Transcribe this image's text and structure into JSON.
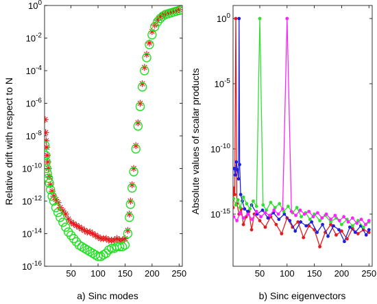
{
  "chart_data": [
    {
      "type": "scatter",
      "xlabel": "a) Sinc modes",
      "ylabel": "Relative drift with respect to N",
      "xlim": [
        1,
        256
      ],
      "ylim_exp": [
        -16,
        0
      ],
      "yscale": "log",
      "grid": false,
      "legend": "none",
      "x_ticks": [
        "50",
        "100",
        "150",
        "200",
        "250"
      ],
      "y_ticks": [
        {
          "base": "10",
          "exp": "0"
        },
        {
          "base": "10",
          "exp": "-2"
        },
        {
          "base": "10",
          "exp": "-4"
        },
        {
          "base": "10",
          "exp": "-6"
        },
        {
          "base": "10",
          "exp": "-8"
        },
        {
          "base": "10",
          "exp": "-10"
        },
        {
          "base": "10",
          "exp": "-12"
        },
        {
          "base": "10",
          "exp": "-14"
        },
        {
          "base": "10",
          "exp": "-16"
        }
      ],
      "series": [
        {
          "color": "#e41a1c",
          "marker": "asterisk",
          "points": [
            [
              2,
              -7.0
            ],
            [
              3,
              -7.8
            ],
            [
              4,
              -8.3
            ],
            [
              5,
              -8.7
            ],
            [
              6,
              -9.2
            ],
            [
              7,
              -9.6
            ],
            [
              8,
              -10.0
            ],
            [
              10,
              -10.5
            ],
            [
              12,
              -11.0
            ],
            [
              15,
              -11.4
            ],
            [
              18,
              -11.7
            ],
            [
              22,
              -11.9
            ],
            [
              26,
              -12.1
            ],
            [
              30,
              -12.4
            ],
            [
              35,
              -12.6
            ],
            [
              40,
              -12.8
            ],
            [
              45,
              -13.1
            ],
            [
              50,
              -13.3
            ],
            [
              55,
              -13.4
            ],
            [
              60,
              -13.5
            ],
            [
              65,
              -13.6
            ],
            [
              70,
              -13.7
            ],
            [
              75,
              -13.8
            ],
            [
              80,
              -13.9
            ],
            [
              85,
              -13.9
            ],
            [
              90,
              -14.0
            ],
            [
              95,
              -14.1
            ],
            [
              100,
              -14.2
            ],
            [
              105,
              -14.3
            ],
            [
              110,
              -14.3
            ],
            [
              115,
              -14.3
            ],
            [
              120,
              -14.4
            ],
            [
              125,
              -14.4
            ],
            [
              130,
              -14.4
            ],
            [
              135,
              -14.3
            ],
            [
              140,
              -14.4
            ],
            [
              145,
              -14.4
            ],
            [
              150,
              -14.3
            ],
            [
              155,
              -13.8
            ],
            [
              158,
              -12.8
            ],
            [
              160,
              -12.0
            ],
            [
              163,
              -11.0
            ],
            [
              166,
              -10.0
            ],
            [
              170,
              -8.6
            ],
            [
              174,
              -7.2
            ],
            [
              178,
              -6.0
            ],
            [
              182,
              -4.8
            ],
            [
              186,
              -3.8
            ],
            [
              190,
              -3.0
            ],
            [
              195,
              -2.3
            ],
            [
              200,
              -1.6
            ],
            [
              205,
              -1.2
            ],
            [
              210,
              -0.9
            ],
            [
              215,
              -0.7
            ],
            [
              220,
              -0.6
            ],
            [
              225,
              -0.5
            ],
            [
              230,
              -0.45
            ],
            [
              235,
              -0.4
            ],
            [
              240,
              -0.35
            ],
            [
              245,
              -0.3
            ],
            [
              250,
              -0.25
            ]
          ]
        },
        {
          "color": "#22e022",
          "marker": "circle",
          "points": [
            [
              2,
              -8.6
            ],
            [
              3,
              -9.2
            ],
            [
              4,
              -9.6
            ],
            [
              5,
              -10.0
            ],
            [
              6,
              -10.3
            ],
            [
              8,
              -10.6
            ],
            [
              10,
              -10.9
            ],
            [
              12,
              -11.3
            ],
            [
              15,
              -11.7
            ],
            [
              18,
              -12.0
            ],
            [
              22,
              -12.4
            ],
            [
              26,
              -12.7
            ],
            [
              30,
              -13.0
            ],
            [
              35,
              -13.3
            ],
            [
              40,
              -13.6
            ],
            [
              45,
              -13.9
            ],
            [
              50,
              -14.1
            ],
            [
              55,
              -14.3
            ],
            [
              60,
              -14.5
            ],
            [
              65,
              -14.7
            ],
            [
              70,
              -14.8
            ],
            [
              75,
              -14.9
            ],
            [
              80,
              -15.0
            ],
            [
              85,
              -15.1
            ],
            [
              90,
              -15.2
            ],
            [
              95,
              -15.3
            ],
            [
              100,
              -15.4
            ],
            [
              105,
              -15.4
            ],
            [
              110,
              -15.3
            ],
            [
              115,
              -15.2
            ],
            [
              120,
              -15.0
            ],
            [
              125,
              -14.9
            ],
            [
              130,
              -14.9
            ],
            [
              135,
              -14.8
            ],
            [
              140,
              -14.8
            ],
            [
              145,
              -14.8
            ],
            [
              150,
              -14.7
            ],
            [
              155,
              -14.0
            ],
            [
              158,
              -13.0
            ],
            [
              160,
              -12.2
            ],
            [
              163,
              -11.2
            ],
            [
              166,
              -10.2
            ],
            [
              170,
              -8.8
            ],
            [
              174,
              -7.4
            ],
            [
              178,
              -6.2
            ],
            [
              182,
              -5.0
            ],
            [
              186,
              -4.0
            ],
            [
              190,
              -3.2
            ],
            [
              195,
              -2.4
            ],
            [
              200,
              -1.8
            ],
            [
              205,
              -1.3
            ],
            [
              210,
              -1.0
            ],
            [
              215,
              -0.8
            ],
            [
              220,
              -0.65
            ],
            [
              225,
              -0.55
            ],
            [
              230,
              -0.5
            ],
            [
              235,
              -0.45
            ],
            [
              240,
              -0.4
            ],
            [
              245,
              -0.35
            ],
            [
              250,
              -0.3
            ]
          ]
        }
      ]
    },
    {
      "type": "line",
      "xlabel": "b) Sinc eigenvectors",
      "ylabel": "Absolute values of scalar products",
      "xlim": [
        1,
        256
      ],
      "ylim_exp": [
        -19,
        1
      ],
      "yscale": "log",
      "grid": false,
      "legend": "none",
      "x_ticks": [
        "50",
        "100",
        "150",
        "200",
        "250"
      ],
      "y_ticks": [
        {
          "base": "10",
          "exp": "0"
        },
        {
          "base": "10",
          "exp": "-5"
        },
        {
          "base": "10",
          "exp": "-10"
        },
        {
          "base": "10",
          "exp": "-15"
        }
      ],
      "series": [
        {
          "color": "#e41a1c",
          "points": [
            [
              1,
              -14.5
            ],
            [
              2,
              -13.0
            ],
            [
              4,
              -13.5
            ],
            [
              6,
              0
            ],
            [
              8,
              -14.2
            ],
            [
              12,
              -15.0
            ],
            [
              16,
              -14.6
            ],
            [
              20,
              -15.8
            ],
            [
              25,
              -15.2
            ],
            [
              30,
              -14.8
            ],
            [
              35,
              -16.2
            ],
            [
              40,
              -15.0
            ],
            [
              50,
              -15.5
            ],
            [
              60,
              -16.0
            ],
            [
              70,
              -15.2
            ],
            [
              80,
              -15.8
            ],
            [
              90,
              -16.5
            ],
            [
              100,
              -15.3
            ],
            [
              110,
              -16.0
            ],
            [
              120,
              -15.6
            ],
            [
              130,
              -16.8
            ],
            [
              140,
              -15.9
            ],
            [
              150,
              -16.2
            ],
            [
              160,
              -17.5
            ],
            [
              170,
              -16.4
            ],
            [
              180,
              -15.8
            ],
            [
              190,
              -16.6
            ],
            [
              200,
              -16.3
            ],
            [
              210,
              -16.9
            ],
            [
              220,
              -16.1
            ],
            [
              230,
              -16.5
            ],
            [
              240,
              -16.2
            ],
            [
              250,
              -16.4
            ]
          ]
        },
        {
          "color": "#1f1fe0",
          "points": [
            [
              3,
              -11.5
            ],
            [
              5,
              -12.0
            ],
            [
              7,
              -11.0
            ],
            [
              9,
              -11.6
            ],
            [
              11,
              -12.3
            ],
            [
              12,
              0
            ],
            [
              13,
              -11.2
            ],
            [
              15,
              -13.5
            ],
            [
              18,
              -14.0
            ],
            [
              22,
              -14.6
            ],
            [
              28,
              -14.8
            ],
            [
              35,
              -14.3
            ],
            [
              45,
              -15.0
            ],
            [
              55,
              -14.7
            ],
            [
              65,
              -15.3
            ],
            [
              75,
              -14.9
            ],
            [
              85,
              -15.4
            ],
            [
              95,
              -15.0
            ],
            [
              105,
              -15.5
            ],
            [
              115,
              -16.3
            ],
            [
              125,
              -15.6
            ],
            [
              135,
              -15.9
            ],
            [
              145,
              -15.6
            ],
            [
              155,
              -16.4
            ],
            [
              165,
              -15.8
            ],
            [
              175,
              -16.7
            ],
            [
              185,
              -15.9
            ],
            [
              195,
              -16.2
            ],
            [
              205,
              -17.1
            ],
            [
              215,
              -16.0
            ],
            [
              225,
              -16.4
            ],
            [
              235,
              -15.9
            ],
            [
              245,
              -16.6
            ],
            [
              250,
              -16.2
            ]
          ]
        },
        {
          "color": "#33dd33",
          "points": [
            [
              2,
              -13.8
            ],
            [
              6,
              -14.3
            ],
            [
              10,
              -13.9
            ],
            [
              14,
              -14.5
            ],
            [
              20,
              -13.7
            ],
            [
              26,
              -14.2
            ],
            [
              32,
              -14.6
            ],
            [
              38,
              -14.0
            ],
            [
              44,
              -14.4
            ],
            [
              50,
              0
            ],
            [
              56,
              -14.3
            ],
            [
              62,
              -14.7
            ],
            [
              70,
              -14.1
            ],
            [
              78,
              -14.5
            ],
            [
              86,
              -14.2
            ],
            [
              94,
              -14.8
            ],
            [
              102,
              -14.4
            ],
            [
              110,
              -14.9
            ],
            [
              118,
              -14.5
            ],
            [
              126,
              -15.2
            ],
            [
              134,
              -14.9
            ],
            [
              142,
              -15.4
            ],
            [
              150,
              -15.0
            ],
            [
              160,
              -15.5
            ],
            [
              170,
              -15.1
            ],
            [
              180,
              -15.6
            ],
            [
              190,
              -15.3
            ],
            [
              200,
              -15.8
            ],
            [
              210,
              -15.4
            ],
            [
              220,
              -15.9
            ],
            [
              230,
              -15.5
            ],
            [
              240,
              -16.0
            ],
            [
              250,
              -15.6
            ]
          ]
        },
        {
          "color": "#ff22ff",
          "points": [
            [
              2,
              -15.2
            ],
            [
              8,
              -15.5
            ],
            [
              14,
              -14.9
            ],
            [
              20,
              -15.3
            ],
            [
              28,
              -15.0
            ],
            [
              36,
              -15.4
            ],
            [
              44,
              -14.8
            ],
            [
              52,
              -15.2
            ],
            [
              60,
              -14.9
            ],
            [
              68,
              -15.1
            ],
            [
              76,
              -14.7
            ],
            [
              84,
              -15.0
            ],
            [
              92,
              -14.6
            ],
            [
              100,
              0
            ],
            [
              108,
              -14.8
            ],
            [
              116,
              -15.1
            ],
            [
              124,
              -14.7
            ],
            [
              132,
              -15.0
            ],
            [
              140,
              -14.8
            ],
            [
              148,
              -15.2
            ],
            [
              156,
              -14.9
            ],
            [
              164,
              -15.3
            ],
            [
              172,
              -15.0
            ],
            [
              180,
              -15.4
            ],
            [
              188,
              -15.1
            ],
            [
              196,
              -15.5
            ],
            [
              204,
              -15.2
            ],
            [
              212,
              -15.6
            ],
            [
              220,
              -15.3
            ],
            [
              228,
              -15.7
            ],
            [
              236,
              -15.4
            ],
            [
              244,
              -15.8
            ],
            [
              250,
              -15.5
            ]
          ]
        }
      ]
    }
  ]
}
